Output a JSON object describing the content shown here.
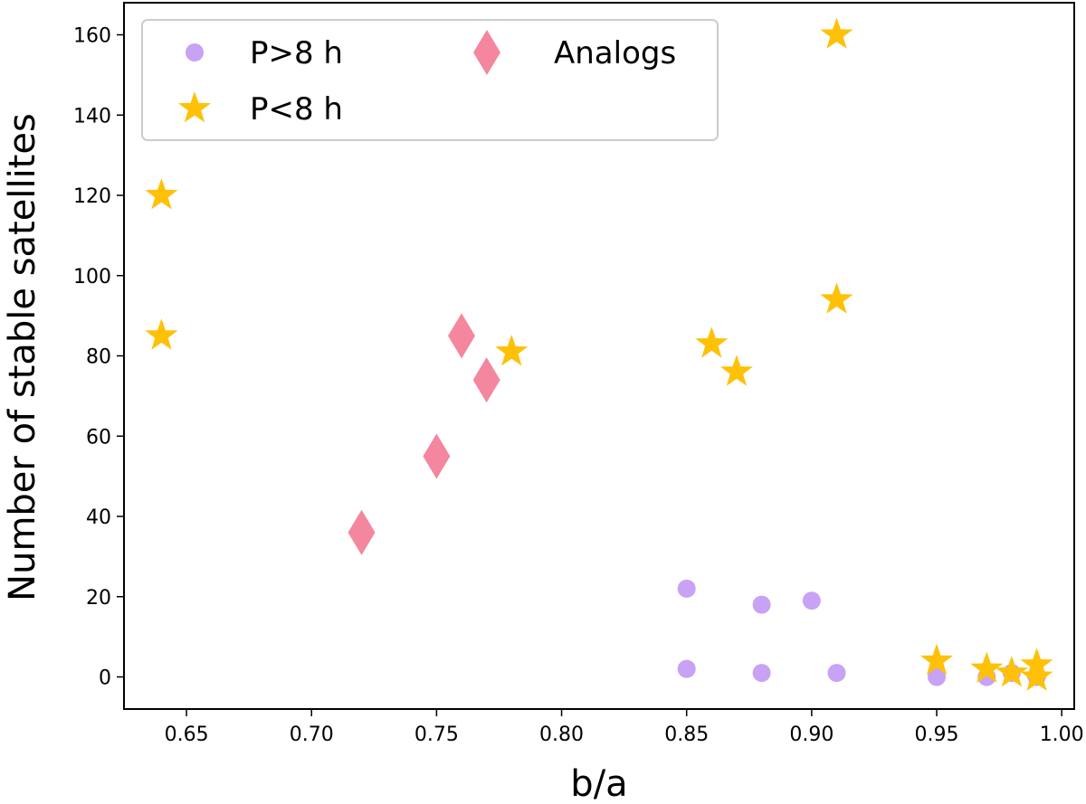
{
  "chart_data": {
    "type": "scatter",
    "title": "",
    "xlabel": "b/a",
    "ylabel": "Number of stable satellites",
    "xlim": [
      0.625,
      1.005
    ],
    "ylim": [
      -8,
      168
    ],
    "xticks": [
      0.65,
      0.7,
      0.75,
      0.8,
      0.85,
      0.9,
      0.95,
      1.0
    ],
    "xtick_labels": [
      "0.65",
      "0.70",
      "0.75",
      "0.80",
      "0.85",
      "0.90",
      "0.95",
      "1.00"
    ],
    "yticks": [
      0,
      20,
      40,
      60,
      80,
      100,
      120,
      140,
      160
    ],
    "ytick_labels": [
      "0",
      "20",
      "40",
      "60",
      "80",
      "100",
      "120",
      "140",
      "160"
    ],
    "grid": false,
    "legend_position": "top-left",
    "series": [
      {
        "name": "P>8 h",
        "marker": "circle",
        "color": "#c8a2f4",
        "points": [
          [
            0.85,
            22
          ],
          [
            0.85,
            2
          ],
          [
            0.88,
            18
          ],
          [
            0.88,
            1
          ],
          [
            0.9,
            19
          ],
          [
            0.91,
            1
          ],
          [
            0.95,
            0
          ],
          [
            0.97,
            0
          ],
          [
            0.98,
            1
          ],
          [
            0.99,
            0
          ]
        ]
      },
      {
        "name": "P<8 h",
        "marker": "star",
        "color": "#ffc107",
        "points": [
          [
            0.64,
            120
          ],
          [
            0.64,
            85
          ],
          [
            0.78,
            81
          ],
          [
            0.86,
            83
          ],
          [
            0.87,
            76
          ],
          [
            0.91,
            160
          ],
          [
            0.91,
            94
          ],
          [
            0.95,
            4
          ],
          [
            0.97,
            2
          ],
          [
            0.98,
            1
          ],
          [
            0.99,
            3
          ],
          [
            0.99,
            0
          ]
        ]
      },
      {
        "name": "Analogs",
        "marker": "diamond",
        "color": "#f4869e",
        "points": [
          [
            0.72,
            36
          ],
          [
            0.75,
            55
          ],
          [
            0.76,
            85
          ],
          [
            0.77,
            74
          ]
        ]
      }
    ]
  }
}
